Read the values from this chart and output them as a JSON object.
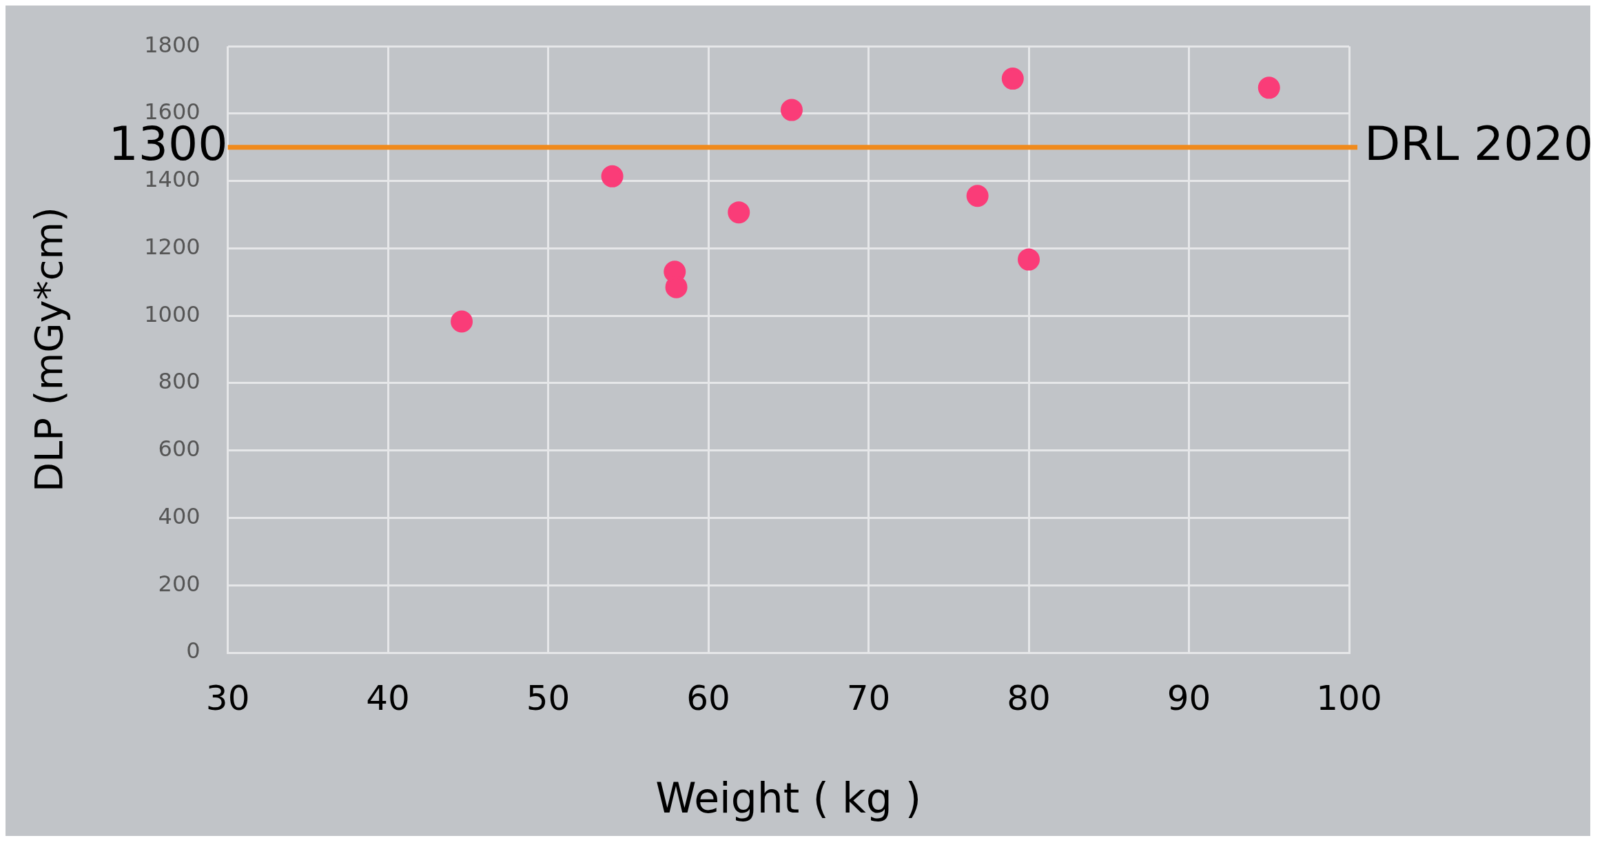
{
  "chart_data": {
    "type": "scatter",
    "xlabel": "Weight ( kg )",
    "ylabel": "DLP (mGy*cm)",
    "x": [
      44.6,
      54.0,
      57.9,
      58.0,
      61.9,
      65.2,
      76.8,
      79.0,
      80.0,
      95.0
    ],
    "values": [
      983,
      1414,
      1131,
      1085,
      1307,
      1611,
      1356,
      1704,
      1167,
      1677
    ],
    "color": "#fa3c78",
    "marker": "circle",
    "xlim": [
      30,
      100
    ],
    "xticks": [
      30,
      40,
      50,
      60,
      70,
      80,
      90,
      100
    ],
    "ylim": [
      0,
      1800
    ],
    "yticks": [
      0,
      200,
      400,
      600,
      800,
      1000,
      1200,
      1400,
      1600,
      1800
    ],
    "grid": true,
    "legend": false,
    "ref_lines": [
      {
        "axis": "y",
        "value": 1500,
        "label": "DRL 2020",
        "color": "#f08a1c",
        "line_style": "solid"
      }
    ],
    "annotations": [
      {
        "text": "1300",
        "x": 30,
        "y": 1500
      }
    ]
  }
}
